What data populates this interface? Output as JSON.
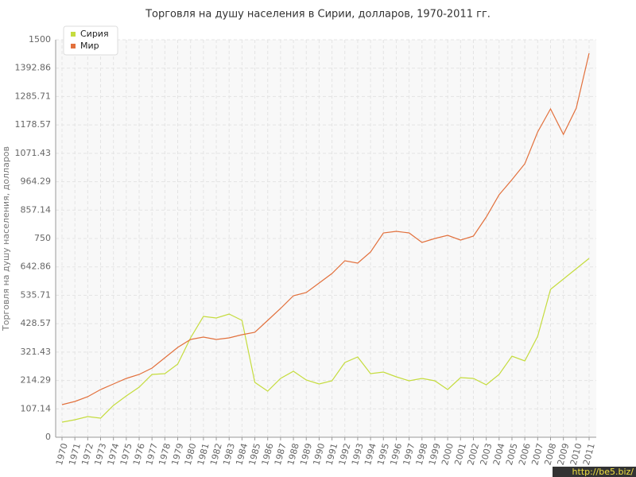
{
  "chart_data": {
    "type": "line",
    "title": "Торговля на душу населения в Сирии, долларов, 1970-2011 гг.",
    "y_label": "Торговля на душу населения, долларов",
    "watermark": "http://be5.biz/",
    "categories": [
      "1970",
      "1971",
      "1972",
      "1973",
      "1974",
      "1975",
      "1976",
      "1977",
      "1978",
      "1979",
      "1980",
      "1981",
      "1982",
      "1983",
      "1984",
      "1985",
      "1986",
      "1987",
      "1988",
      "1989",
      "1990",
      "1991",
      "1992",
      "1993",
      "1994",
      "1995",
      "1996",
      "1997",
      "1998",
      "1999",
      "2000",
      "2001",
      "2002",
      "2003",
      "2004",
      "2005",
      "2006",
      "2007",
      "2008",
      "2009",
      "2010",
      "2011"
    ],
    "series": [
      {
        "name": "Сирия",
        "color": "#c5dc3e",
        "values": [
          57,
          66,
          78,
          72,
          120,
          156,
          189,
          237,
          240,
          276,
          375,
          456,
          450,
          465,
          441,
          207,
          174,
          222,
          249,
          216,
          201,
          213,
          282,
          303,
          240,
          246,
          228,
          213,
          222,
          213,
          180,
          225,
          222,
          198,
          237,
          306,
          288,
          381,
          558,
          597,
          636,
          675
        ]
      },
      {
        "name": "Мир",
        "color": "#e2703c",
        "values": [
          123,
          135,
          153,
          180,
          201,
          222,
          237,
          261,
          300,
          339,
          369,
          378,
          369,
          375,
          387,
          396,
          441,
          486,
          534,
          546,
          582,
          618,
          666,
          657,
          699,
          771,
          777,
          771,
          735,
          750,
          762,
          744,
          759,
          831,
          915,
          972,
          1032,
          1152,
          1239,
          1143,
          1242,
          1449
        ]
      }
    ],
    "ylim": [
      0,
      1500
    ],
    "yticks": [
      0,
      107.14,
      214.29,
      321.43,
      428.57,
      535.71,
      642.86,
      750,
      857.14,
      964.29,
      1071.43,
      1178.57,
      1285.71,
      1392.86,
      1500
    ],
    "grid": true,
    "legend": "top-left"
  }
}
